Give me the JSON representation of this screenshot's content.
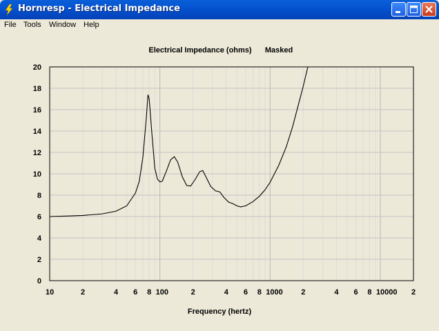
{
  "window": {
    "title": "Hornresp - Electrical Impedance"
  },
  "menu": {
    "items": [
      "File",
      "Tools",
      "Window",
      "Help"
    ]
  },
  "chart_data": {
    "type": "line",
    "title": "Electrical Impedance (ohms)",
    "subtitle": "Masked",
    "xlabel": "Frequency (hertz)",
    "ylabel": "",
    "xscale": "log",
    "xlim": [
      10,
      20000
    ],
    "ylim": [
      0,
      20
    ],
    "grid": true,
    "yticks": [
      "0",
      "2",
      "4",
      "6",
      "8",
      "10",
      "12",
      "14",
      "16",
      "18",
      "20"
    ],
    "xticks": [
      {
        "v": 10,
        "t": "10"
      },
      {
        "v": 20,
        "t": "2"
      },
      {
        "v": 40,
        "t": "4"
      },
      {
        "v": 60,
        "t": "6"
      },
      {
        "v": 80,
        "t": "8"
      },
      {
        "v": 100,
        "t": "100"
      },
      {
        "v": 200,
        "t": "2"
      },
      {
        "v": 400,
        "t": "4"
      },
      {
        "v": 600,
        "t": "6"
      },
      {
        "v": 800,
        "t": "8"
      },
      {
        "v": 1000,
        "t": "1000"
      },
      {
        "v": 2000,
        "t": "2"
      },
      {
        "v": 4000,
        "t": "4"
      },
      {
        "v": 6000,
        "t": "6"
      },
      {
        "v": 8000,
        "t": "8"
      },
      {
        "v": 10000,
        "t": "10000"
      },
      {
        "v": 20000,
        "t": "2"
      }
    ],
    "series": [
      {
        "points": [
          [
            10,
            6.0
          ],
          [
            15,
            6.05
          ],
          [
            20,
            6.1
          ],
          [
            30,
            6.25
          ],
          [
            40,
            6.5
          ],
          [
            50,
            7.0
          ],
          [
            60,
            8.2
          ],
          [
            65,
            9.3
          ],
          [
            70,
            11.5
          ],
          [
            75,
            15.0
          ],
          [
            78,
            17.4
          ],
          [
            80,
            17.0
          ],
          [
            85,
            13.5
          ],
          [
            90,
            10.5
          ],
          [
            95,
            9.5
          ],
          [
            100,
            9.25
          ],
          [
            105,
            9.3
          ],
          [
            115,
            10.3
          ],
          [
            125,
            11.3
          ],
          [
            135,
            11.6
          ],
          [
            145,
            11.1
          ],
          [
            160,
            9.7
          ],
          [
            175,
            8.9
          ],
          [
            190,
            8.85
          ],
          [
            210,
            9.5
          ],
          [
            230,
            10.2
          ],
          [
            245,
            10.3
          ],
          [
            265,
            9.6
          ],
          [
            290,
            8.8
          ],
          [
            320,
            8.4
          ],
          [
            350,
            8.3
          ],
          [
            380,
            7.8
          ],
          [
            420,
            7.35
          ],
          [
            460,
            7.2
          ],
          [
            500,
            7.0
          ],
          [
            540,
            6.9
          ],
          [
            600,
            7.0
          ],
          [
            700,
            7.4
          ],
          [
            800,
            7.9
          ],
          [
            900,
            8.5
          ],
          [
            1000,
            9.2
          ],
          [
            1200,
            10.8
          ],
          [
            1400,
            12.5
          ],
          [
            1600,
            14.4
          ],
          [
            1800,
            16.4
          ],
          [
            2000,
            18.2
          ],
          [
            2200,
            20.0
          ]
        ]
      }
    ]
  }
}
